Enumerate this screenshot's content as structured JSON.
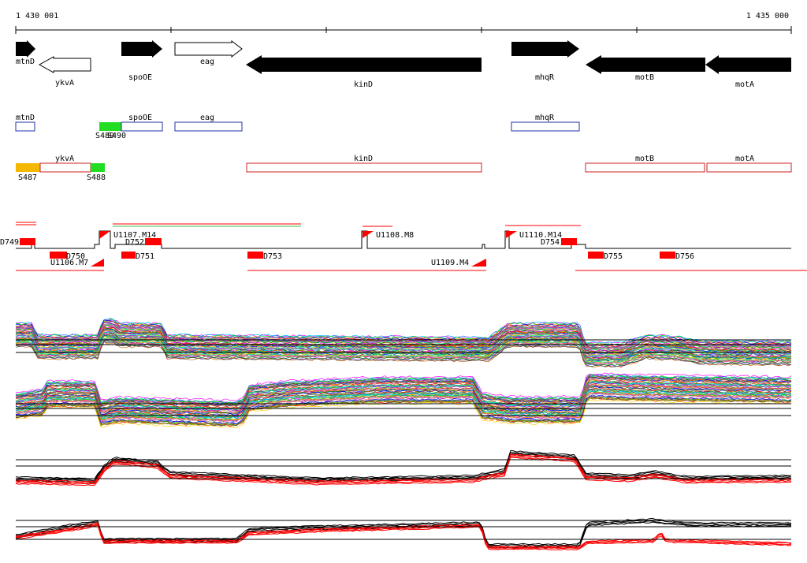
{
  "coordinates": {
    "start_label": "1 430 001",
    "end_label": "1 435 000"
  },
  "genes": [
    {
      "name": "mtnD",
      "strand": "+",
      "orf_filled": true
    },
    {
      "name": "ykvA",
      "strand": "-",
      "orf_filled": false
    },
    {
      "name": "spoOE",
      "strand": "+",
      "orf_filled": true
    },
    {
      "name": "eag",
      "strand": "+",
      "orf_filled": false
    },
    {
      "name": "kinD",
      "strand": "-",
      "orf_filled": true
    },
    {
      "name": "mhqR",
      "strand": "+",
      "orf_filled": true
    },
    {
      "name": "motB",
      "strand": "-",
      "orf_filled": true
    },
    {
      "name": "motA",
      "strand": "-",
      "orf_filled": true
    }
  ],
  "forward_transcript_boxes": [
    {
      "name": "mtnD"
    },
    {
      "name": "spoOE",
      "segment": "S489",
      "segment_color": "#22dd22",
      "segment_label2": "S490"
    },
    {
      "name": "eag"
    },
    {
      "name": "mhqR"
    }
  ],
  "reverse_transcript_boxes": [
    {
      "name": "ykvA",
      "segments": [
        {
          "label": "S487",
          "color": "#f5b800"
        },
        {
          "label": "S488",
          "color": "#22dd22"
        }
      ]
    },
    {
      "name": "kinD"
    },
    {
      "name": "motB"
    },
    {
      "name": "motA"
    }
  ],
  "upshift_labels": [
    "U1107.M14",
    "U1108.M8",
    "U1110.M14",
    "U1106.M7",
    "U1109.M4"
  ],
  "downshift_labels": [
    "D749",
    "D752",
    "D754",
    "D750",
    "D751",
    "D753",
    "D755",
    "D756"
  ],
  "expression_panels": [
    {
      "strand": "forward",
      "profiles": "many-conditions"
    },
    {
      "strand": "reverse",
      "profiles": "many-conditions"
    },
    {
      "strand": "forward",
      "profiles": "summary"
    },
    {
      "strand": "reverse",
      "profiles": "summary"
    }
  ],
  "colors": {
    "gene_fill": "#000000",
    "forward_box": "#2233aa",
    "reverse_box": "#cc2222",
    "shift_mark": "#ff0000",
    "orange_segment": "#f5b800",
    "green_segment": "#22dd22"
  }
}
